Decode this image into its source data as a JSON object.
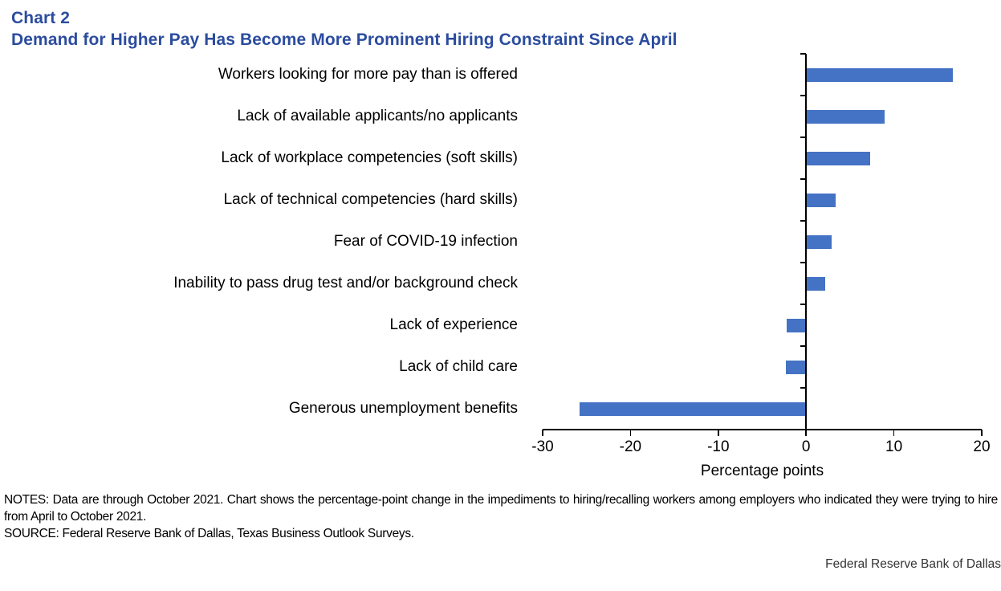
{
  "header": {
    "chart_label": "Chart 2",
    "title": "Demand for Higher Pay Has Become More Prominent Hiring Constraint Since April"
  },
  "colors": {
    "bar": "#4472C4",
    "title_text": "#2B4C9E",
    "axis": "#000000"
  },
  "chart_data": {
    "type": "bar",
    "orientation": "horizontal",
    "categories": [
      "Workers looking for more pay than is offered",
      "Lack of available applicants/no applicants",
      "Lack of workplace competencies (soft skills)",
      "Lack of technical competencies (hard skills)",
      "Fear of COVID-19 infection",
      "Inability to pass drug test and/or background check",
      "Lack of experience",
      "Lack of child care",
      "Generous unemployment benefits"
    ],
    "values": [
      16.7,
      8.9,
      7.3,
      3.4,
      2.9,
      2.2,
      -2.2,
      -2.3,
      -25.8
    ],
    "xlabel": "Percentage points",
    "xlim": [
      -30,
      20
    ],
    "xticks": [
      -30,
      -20,
      -10,
      0,
      10,
      20
    ],
    "grid": false,
    "legend": null
  },
  "notes": {
    "notes_text": "NOTES: Data are through October 2021. Chart shows the percentage-point change in the impediments to hiring/recalling workers among employers who indicated they were trying to hire from April to October 2021.",
    "source_text": "SOURCE: Federal Reserve Bank of Dallas, Texas Business Outlook Surveys."
  },
  "footer": {
    "org": "Federal Reserve Bank of Dallas"
  }
}
